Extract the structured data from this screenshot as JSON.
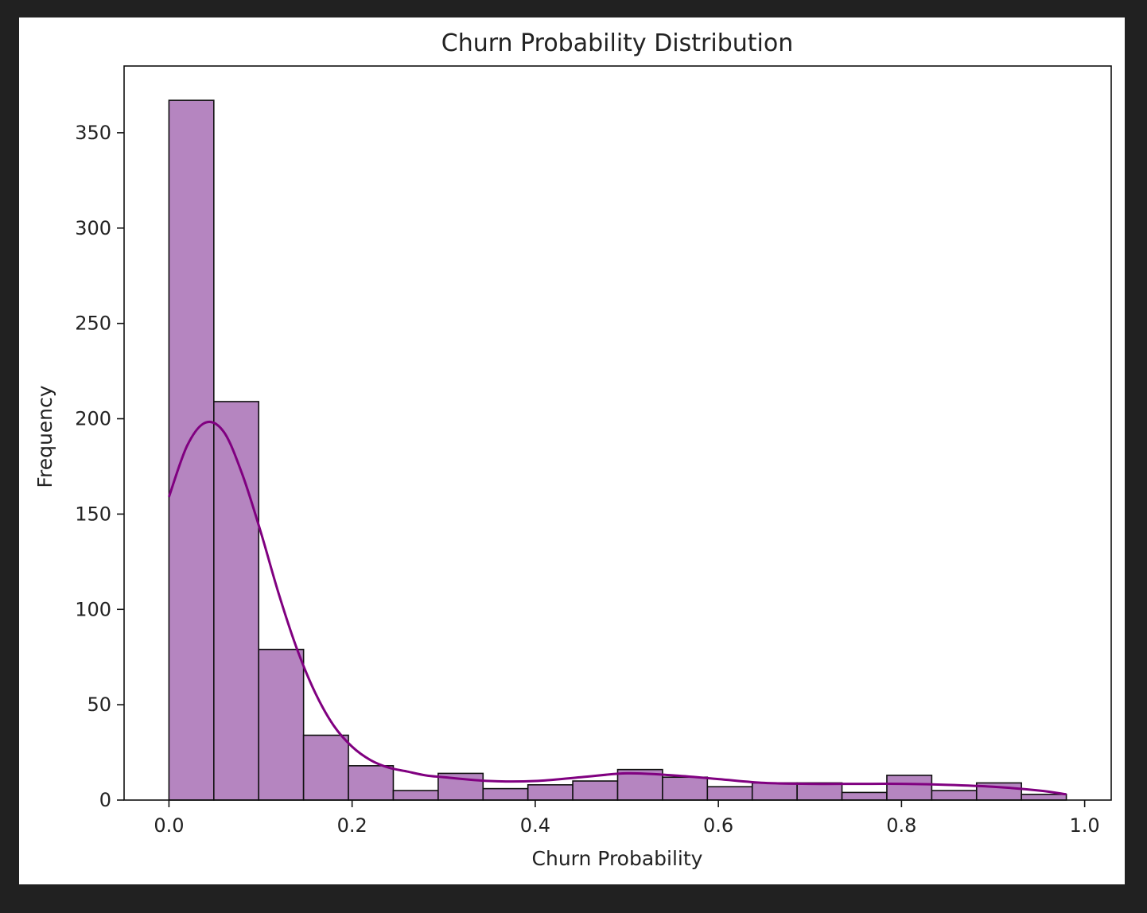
{
  "chart_data": {
    "type": "bar",
    "title": "Churn Probability Distribution",
    "xlabel": "Churn Probability",
    "ylabel": "Frequency",
    "xlim": [
      -0.049,
      1.029
    ],
    "ylim": [
      0,
      385
    ],
    "xticks": [
      0.0,
      0.2,
      0.4,
      0.6,
      0.8,
      1.0
    ],
    "xtick_labels": [
      "0.0",
      "0.2",
      "0.4",
      "0.6",
      "0.8",
      "1.0"
    ],
    "yticks": [
      0,
      50,
      100,
      150,
      200,
      250,
      300,
      350
    ],
    "ytick_labels": [
      "0",
      "50",
      "100",
      "150",
      "200",
      "250",
      "300",
      "350"
    ],
    "grid": false,
    "bin_edges": [
      0.0,
      0.049,
      0.098,
      0.147,
      0.196,
      0.245,
      0.294,
      0.343,
      0.392,
      0.441,
      0.49,
      0.539,
      0.588,
      0.637,
      0.686,
      0.735,
      0.784,
      0.833,
      0.882,
      0.931,
      0.98
    ],
    "counts": [
      367,
      209,
      79,
      34,
      18,
      5,
      14,
      6,
      8,
      10,
      16,
      12,
      7,
      9,
      9,
      4,
      13,
      5,
      9,
      3
    ],
    "kde": {
      "x": [
        0.0,
        0.02,
        0.04,
        0.06,
        0.08,
        0.1,
        0.12,
        0.14,
        0.16,
        0.18,
        0.2,
        0.22,
        0.24,
        0.26,
        0.28,
        0.3,
        0.35,
        0.4,
        0.45,
        0.5,
        0.55,
        0.6,
        0.65,
        0.7,
        0.75,
        0.8,
        0.85,
        0.9,
        0.95,
        0.98
      ],
      "y": [
        159,
        186,
        198,
        193,
        171,
        141,
        108,
        79,
        56,
        39,
        28,
        21,
        17,
        15,
        13,
        12,
        10,
        10,
        12,
        14,
        13,
        11,
        9,
        8.5,
        8.5,
        8.5,
        8,
        7,
        5,
        3
      ]
    },
    "colors": {
      "bar_fill": "#b585c0",
      "bar_edge": "#111111",
      "kde_line": "#800080"
    }
  }
}
